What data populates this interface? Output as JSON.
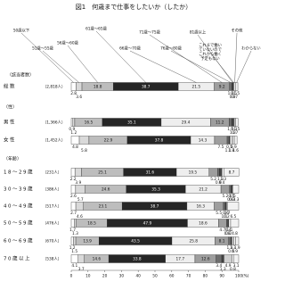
{
  "chart_data": {
    "type": "bar",
    "orientation": "horizontal",
    "stacked": true,
    "title": "図1　何歳まで仕事をしたいか（したか）",
    "count_header": "（該当者数）",
    "categories": [
      "総数",
      "男性",
      "女性",
      "18～29歳",
      "30～39歳",
      "40～49歳",
      "50～59歳",
      "60～69歳",
      "70歳以上"
    ],
    "counts": [
      "（2,818人）",
      "（1,366人）",
      "（1,452人）",
      "（231人）",
      "（386人）",
      "（517人）",
      "（476人）",
      "（670人）",
      "（538人）"
    ],
    "group_labels": [
      "（性）",
      "（年齢）"
    ],
    "series": [
      {
        "name": "50歳以下",
        "color": "#ffffff",
        "values": [
          2.8,
          0.9,
          4.8,
          2.2,
          2.6,
          2.7,
          1.7,
          1.2,
          4.1
        ]
      },
      {
        "name": "51歳～55歳",
        "color": "#d9d9d9",
        "values": [
          3.6,
          1.2,
          5.8,
          3.9,
          5.7,
          4.6,
          1.3,
          1.5,
          3.7
        ]
      },
      {
        "name": "56歳～60歳",
        "color": "#bdbdbd",
        "values": [
          18.8,
          16.5,
          22.9,
          25.1,
          24.6,
          23.1,
          18.5,
          13.9,
          14.6
        ]
      },
      {
        "name": "61歳～65歳",
        "color": "#262626",
        "values": [
          38.7,
          35.1,
          37.8,
          31.6,
          35.3,
          38.7,
          47.9,
          43.5,
          33.8
        ]
      },
      {
        "name": "66歳～70歳",
        "color": "#eeeeee",
        "values": [
          21.5,
          29.4,
          14.3,
          19.5,
          21.2,
          16.3,
          18.6,
          25.8,
          17.7
        ]
      },
      {
        "name": "71歳～75歳",
        "color": "#9e9e9e",
        "values": [
          9.2,
          11.2,
          7.5,
          5.2,
          5.2,
          5.5,
          4.7,
          8.1,
          12.6
        ]
      },
      {
        "name": "76歳～80歳",
        "color": "#6e6e6e",
        "values": [
          1.3,
          1.5,
          1.1,
          0.9,
          0.8,
          1.1,
          0.8,
          1.3,
          3.4
        ]
      },
      {
        "name": "81歳以上",
        "color": "#444444",
        "values": [
          0.9,
          1.3,
          0.5,
          1.3,
          0.5,
          0.6,
          0.4,
          0.6,
          1.3
        ]
      },
      {
        "name": "これまで働いていないのでこれから働く予定もない",
        "color": "#cfcfcf",
        "values": [
          0.5,
          0.3,
          1.8,
          0.4,
          0.3,
          0.2,
          0.2,
          1.3,
          4.9
        ]
      },
      {
        "name": "その他",
        "color": "#ffffff",
        "values": [
          0.7,
          0.7,
          0.9,
          1.3,
          0.5,
          0.7,
          1.1,
          0.9,
          0.8
        ]
      },
      {
        "name": "わからない",
        "color": "#f2f2f2",
        "values": [
          1.5,
          1.5,
          1.6,
          8.7,
          3.3,
          6.5,
          4.8,
          1.9,
          3.1
        ]
      }
    ],
    "xlim": [
      0,
      100
    ],
    "xticks": [
      0,
      10,
      20,
      30,
      40,
      50,
      60,
      70,
      80,
      90,
      100
    ],
    "x_unit": "(%)"
  }
}
